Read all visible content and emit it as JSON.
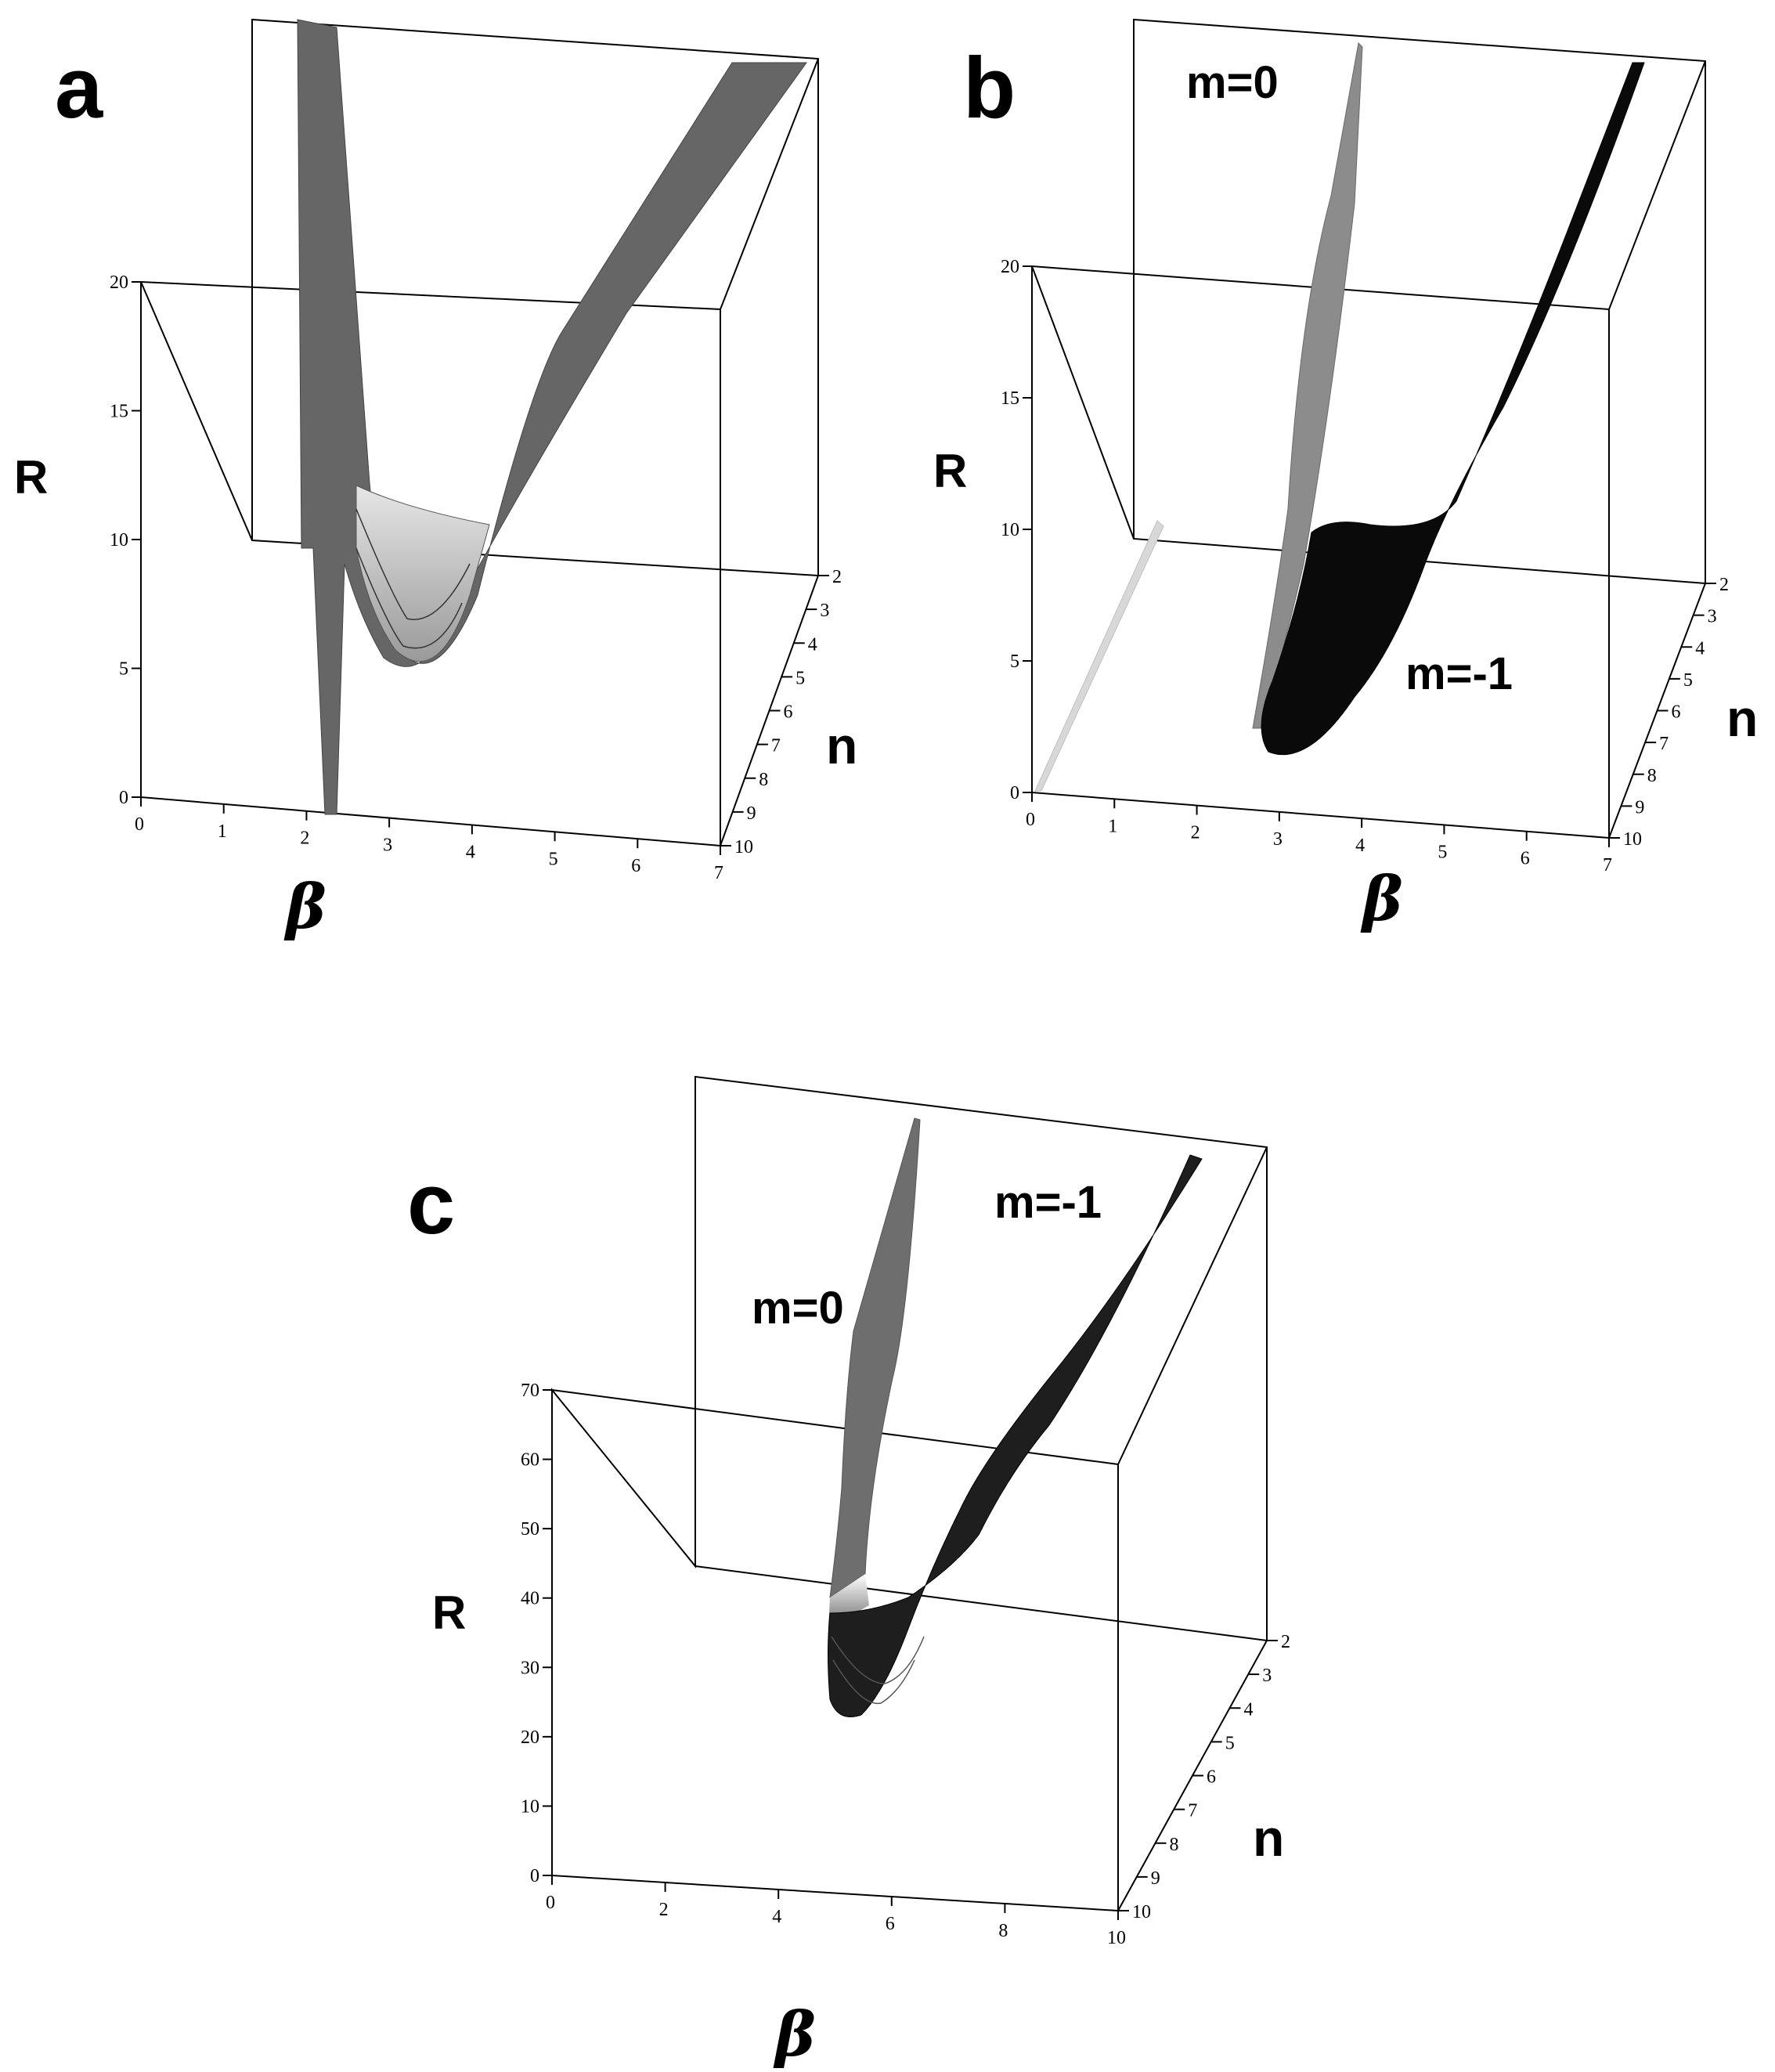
{
  "chart_data": [
    {
      "panel": "a",
      "type": "surface3d",
      "axes": {
        "beta": {
          "label": "β",
          "ticks": [
            "0",
            "1",
            "2",
            "3",
            "4",
            "5",
            "6",
            "7"
          ],
          "range": [
            0,
            7
          ]
        },
        "n": {
          "label": "n",
          "ticks": [
            "2",
            "3",
            "4",
            "5",
            "6",
            "7",
            "8",
            "9",
            "10"
          ],
          "range": [
            2,
            10
          ]
        },
        "R": {
          "label": "R",
          "ticks": [
            "0",
            "5",
            "10",
            "15",
            "20"
          ],
          "range": [
            0,
            20
          ]
        }
      },
      "surfaces": [
        {
          "colormap": "grayscale",
          "min_R": 5,
          "min_at_beta": 3
        }
      ]
    },
    {
      "panel": "b",
      "type": "surface3d",
      "axes": {
        "beta": {
          "label": "β",
          "ticks": [
            "0",
            "1",
            "2",
            "3",
            "4",
            "5",
            "6",
            "7"
          ],
          "range": [
            0,
            7
          ]
        },
        "n": {
          "label": "n",
          "ticks": [
            "2",
            "3",
            "4",
            "5",
            "6",
            "7",
            "8",
            "9",
            "10"
          ],
          "range": [
            2,
            10
          ]
        },
        "R": {
          "label": "R",
          "ticks": [
            "0",
            "5",
            "10",
            "15",
            "20"
          ],
          "range": [
            0,
            20
          ]
        }
      },
      "surfaces": [
        {
          "name": "m=0",
          "color": "#8c8c8c"
        },
        {
          "name": "m=-1",
          "color": "#0a0a0a",
          "min_R": 2
        }
      ]
    },
    {
      "panel": "c",
      "type": "surface3d",
      "axes": {
        "beta": {
          "label": "β",
          "ticks": [
            "0",
            "2",
            "4",
            "6",
            "8",
            "10"
          ],
          "range": [
            0,
            10
          ]
        },
        "n": {
          "label": "n",
          "ticks": [
            "2",
            "3",
            "4",
            "5",
            "6",
            "7",
            "8",
            "9",
            "10"
          ],
          "range": [
            2,
            10
          ]
        },
        "R": {
          "label": "R",
          "ticks": [
            "0",
            "10",
            "20",
            "30",
            "40",
            "50",
            "60",
            "70"
          ],
          "range": [
            0,
            70
          ]
        }
      },
      "surfaces": [
        {
          "name": "m=0",
          "color": "#6e6e6e"
        },
        {
          "name": "m=-1",
          "color": "#1e1e1e",
          "min_R": 24
        }
      ]
    }
  ]
}
